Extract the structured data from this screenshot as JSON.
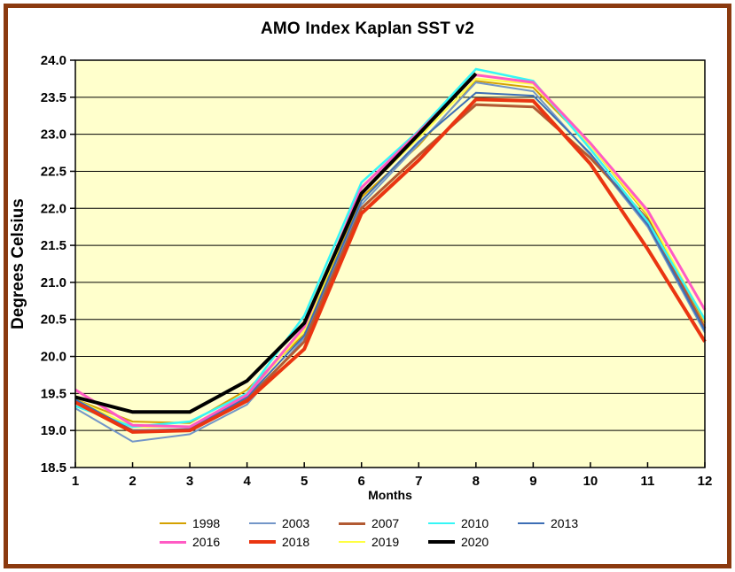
{
  "frame": {
    "border_color": "#8B3A0F",
    "plot_bg": "#FFFFCC",
    "grid_color": "#000000"
  },
  "chart_data": {
    "type": "line",
    "title": "AMO Index Kaplan SST v2",
    "xlabel": "Months",
    "ylabel": "Degrees Celsius",
    "x": [
      1,
      2,
      3,
      4,
      5,
      6,
      7,
      8,
      9,
      10,
      11,
      12
    ],
    "xlim": [
      1,
      12
    ],
    "ylim": [
      18.5,
      24.0
    ],
    "ytick_step": 0.5,
    "ytick_labels": [
      "24.0",
      "23.5",
      "23.0",
      "22.5",
      "22.0",
      "21.5",
      "21.0",
      "20.5",
      "20.0",
      "19.5",
      "19.0",
      "18.5"
    ],
    "xtick_labels": [
      "1",
      "2",
      "3",
      "4",
      "5",
      "6",
      "7",
      "8",
      "9",
      "10",
      "11",
      "12"
    ],
    "grid": true,
    "legend_position": "bottom",
    "legend_rows": [
      5,
      4
    ],
    "series": [
      {
        "name": "1998",
        "color": "#D4A100",
        "width": 2,
        "z": 1,
        "values": [
          19.42,
          19.12,
          19.1,
          19.55,
          20.3,
          22.15,
          22.85,
          23.72,
          23.63,
          22.85,
          21.9,
          20.45
        ]
      },
      {
        "name": "2003",
        "color": "#7396C8",
        "width": 2,
        "z": 3,
        "values": [
          19.3,
          18.85,
          18.95,
          19.35,
          20.25,
          22.05,
          22.87,
          23.7,
          23.58,
          22.72,
          21.75,
          20.32
        ]
      },
      {
        "name": "2007",
        "color": "#B25A33",
        "width": 3,
        "z": 4,
        "values": [
          19.4,
          19.0,
          19.0,
          19.42,
          20.2,
          22.0,
          22.72,
          23.4,
          23.37,
          22.68,
          21.85,
          20.38
        ]
      },
      {
        "name": "2010",
        "color": "#35F6F6",
        "width": 2.5,
        "z": 5,
        "values": [
          19.33,
          19.05,
          19.12,
          19.5,
          20.55,
          22.35,
          23.05,
          23.88,
          23.72,
          22.8,
          21.82,
          20.5
        ]
      },
      {
        "name": "2013",
        "color": "#3D6EB5",
        "width": 2,
        "z": 6,
        "values": [
          19.42,
          19.0,
          19.02,
          19.45,
          20.28,
          22.1,
          22.9,
          23.56,
          23.52,
          22.74,
          21.78,
          20.35
        ]
      },
      {
        "name": "2016",
        "color": "#FF5BC4",
        "width": 3,
        "z": 7,
        "values": [
          19.55,
          19.07,
          19.05,
          19.48,
          20.4,
          22.28,
          23.03,
          23.8,
          23.7,
          22.88,
          21.97,
          20.63
        ]
      },
      {
        "name": "2018",
        "color": "#EA3511",
        "width": 4,
        "z": 8,
        "values": [
          19.38,
          18.98,
          19.0,
          19.4,
          20.1,
          21.93,
          22.65,
          23.47,
          23.45,
          22.6,
          21.45,
          20.2
        ]
      },
      {
        "name": "2019",
        "color": "#FFFF42",
        "width": 2,
        "z": 2,
        "values": [
          19.42,
          19.05,
          19.05,
          19.48,
          20.35,
          22.2,
          22.95,
          23.75,
          23.68,
          22.85,
          21.92,
          20.48
        ]
      },
      {
        "name": "2020",
        "color": "#000000",
        "width": 4,
        "z": 9,
        "values": [
          19.45,
          19.25,
          19.25,
          19.67,
          20.45,
          22.2,
          23.0,
          23.82
        ]
      }
    ]
  }
}
